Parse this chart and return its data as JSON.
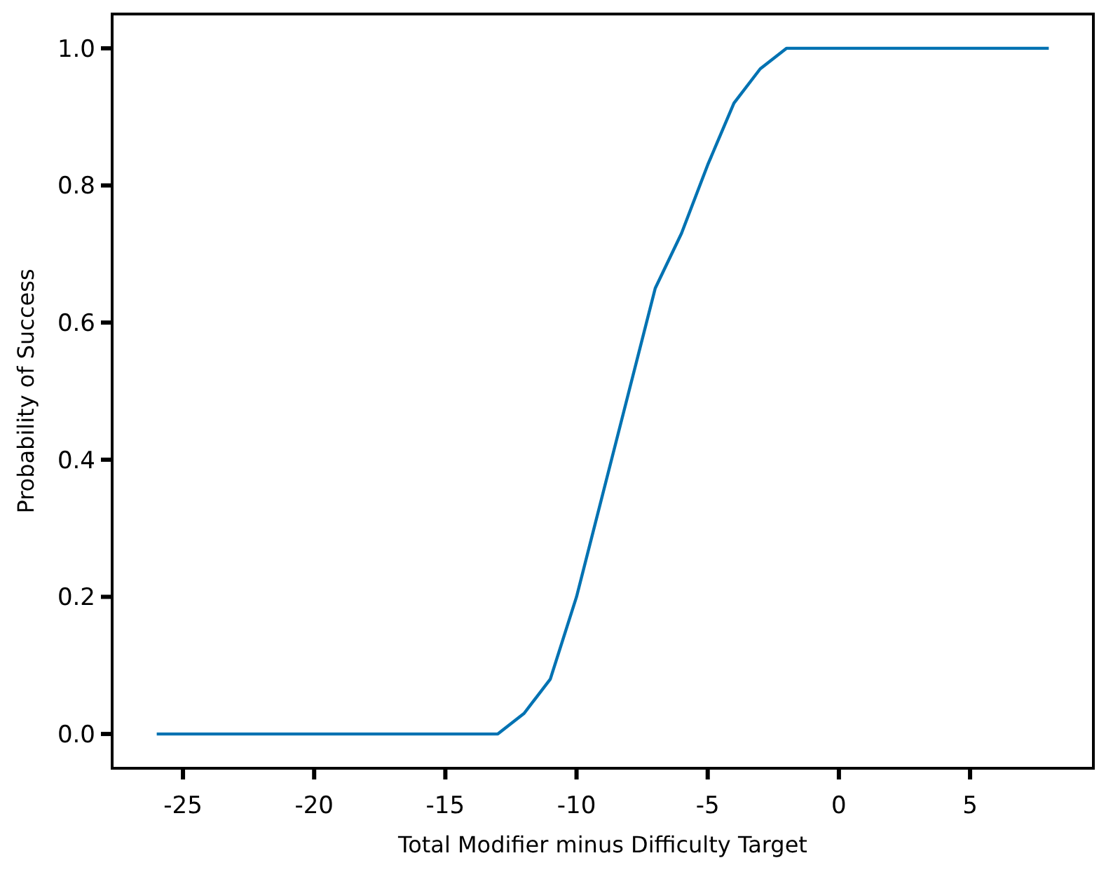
{
  "chart_data": {
    "type": "line",
    "xlabel": "Total Modifier minus Difficulty Target",
    "ylabel": "Probability of Success",
    "x": [
      -26,
      -25,
      -24,
      -23,
      -22,
      -21,
      -20,
      -19,
      -18,
      -17,
      -16,
      -15,
      -14,
      -13,
      -12,
      -11,
      -10,
      -9,
      -8,
      -7,
      -6,
      -5,
      -4,
      -3,
      -2,
      -1,
      0,
      1,
      2,
      3,
      4,
      5,
      6,
      7,
      8
    ],
    "series": [
      {
        "color": "#0072b2",
        "values": [
          0,
          0,
          0,
          0,
          0,
          0,
          0,
          0,
          0,
          0,
          0,
          0,
          0,
          0,
          0.03,
          0.08,
          0.2,
          0.35,
          0.5,
          0.65,
          0.73,
          0.83,
          0.92,
          0.97,
          1,
          1,
          1,
          1,
          1,
          1,
          1,
          1,
          1,
          1,
          1
        ]
      }
    ],
    "xlim": [
      -27.7,
      9.7
    ],
    "ylim": [
      -0.05,
      1.05
    ],
    "xticks": [
      -25,
      -20,
      -15,
      -10,
      -5,
      0,
      5
    ],
    "yticks": [
      {
        "value": 0,
        "label": "0.0"
      },
      {
        "value": 0.2,
        "label": "0.2"
      },
      {
        "value": 0.4,
        "label": "0.4"
      },
      {
        "value": 0.6,
        "label": "0.6"
      },
      {
        "value": 0.8,
        "label": "0.8"
      },
      {
        "value": 1,
        "label": "1.0"
      }
    ],
    "grid": false
  }
}
